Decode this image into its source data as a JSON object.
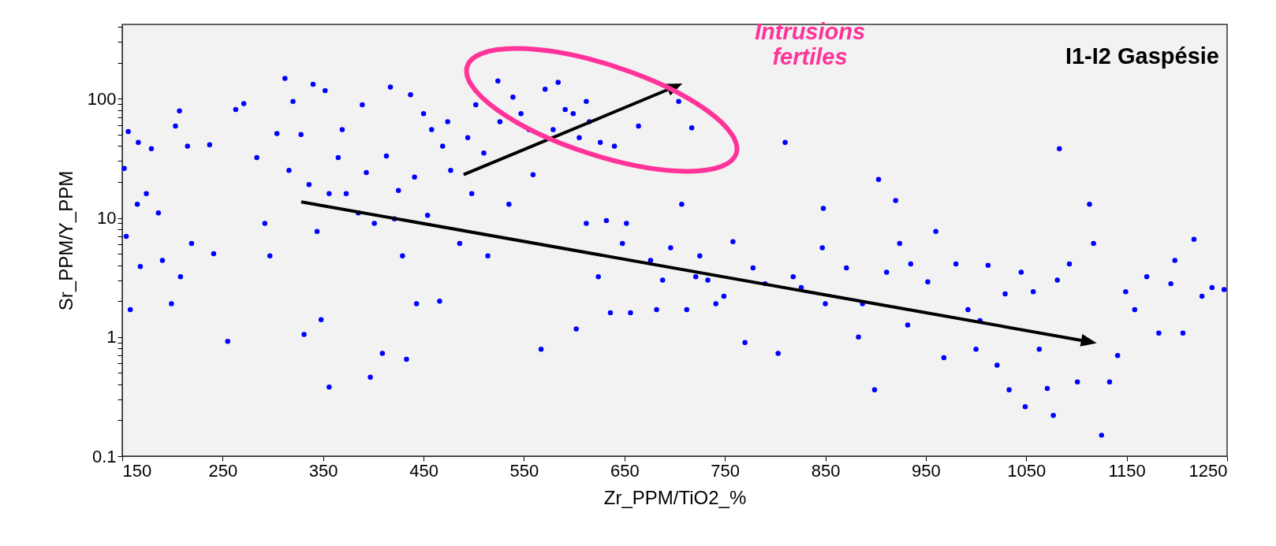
{
  "chart_data": {
    "type": "scatter",
    "title": "I1-I2 Gaspésie",
    "xlabel": "Zr_PPM/TiO2_%",
    "ylabel": "Sr_PPM/Y_PPM",
    "annotations": [
      "Intrusions fertiles"
    ],
    "log": "y",
    "grid": false,
    "legend": false,
    "marker": "circle",
    "xlim": [
      150,
      1250
    ],
    "xticks": [
      150,
      250,
      350,
      450,
      550,
      650,
      750,
      850,
      950,
      1050,
      1150,
      1250
    ],
    "ylim": [
      0.1,
      420
    ],
    "yticks": [
      0.1,
      {
        "value": 0.2,
        "label": null
      },
      {
        "value": 0.3,
        "label": null
      },
      {
        "value": 0.4,
        "label": null
      },
      {
        "value": 0.5,
        "label": null
      },
      {
        "value": 0.6,
        "label": null
      },
      {
        "value": 0.7,
        "label": null
      },
      {
        "value": 0.8,
        "label": null
      },
      {
        "value": 0.9,
        "label": null
      },
      1,
      {
        "value": 2,
        "label": null
      },
      {
        "value": 3,
        "label": null
      },
      {
        "value": 4,
        "label": null
      },
      {
        "value": 5,
        "label": null
      },
      {
        "value": 6,
        "label": null
      },
      {
        "value": 7,
        "label": null
      },
      {
        "value": 8,
        "label": null
      },
      {
        "value": 9,
        "label": null
      },
      10,
      {
        "value": 20,
        "label": null
      },
      {
        "value": 30,
        "label": null
      },
      {
        "value": 40,
        "label": null
      },
      {
        "value": 50,
        "label": null
      },
      {
        "value": 60,
        "label": null
      },
      {
        "value": 70,
        "label": null
      },
      {
        "value": 80,
        "label": null
      },
      {
        "value": 90,
        "label": null
      },
      100,
      {
        "value": 200,
        "label": null
      },
      {
        "value": 300,
        "label": null
      },
      {
        "value": 400,
        "label": null
      }
    ],
    "series": [
      {
        "color": "#0000ff",
        "x": [
          152,
          156,
          154,
          158,
          166,
          165,
          168,
          174,
          179,
          186,
          190,
          199,
          203,
          207,
          208,
          215,
          219,
          237,
          241,
          255,
          263,
          271,
          284,
          292,
          297,
          304,
          312,
          316,
          320,
          328,
          331,
          336,
          340,
          344,
          348,
          352,
          356,
          356,
          365,
          369,
          373,
          385,
          389,
          393,
          397,
          401,
          409,
          413,
          417,
          421,
          425,
          429,
          433,
          437,
          441,
          443,
          450,
          454,
          458,
          466,
          469,
          474,
          477,
          486,
          494,
          498,
          502,
          510,
          514,
          524,
          526,
          535,
          539,
          547,
          555,
          559,
          567,
          571,
          579,
          584,
          591,
          599,
          602,
          605,
          612,
          612,
          615,
          624,
          626,
          632,
          636,
          640,
          648,
          652,
          656,
          664,
          676,
          682,
          688,
          696,
          704,
          707,
          712,
          717,
          721,
          725,
          733,
          741,
          749,
          758,
          770,
          778,
          790,
          803,
          810,
          818,
          826,
          847,
          848,
          850,
          871,
          883,
          887,
          899,
          903,
          911,
          920,
          924,
          932,
          935,
          952,
          960,
          968,
          980,
          992,
          1000,
          1004,
          1012,
          1021,
          1029,
          1033,
          1045,
          1049,
          1057,
          1063,
          1071,
          1077,
          1081,
          1083,
          1093,
          1101,
          1113,
          1117,
          1125,
          1133,
          1141,
          1149,
          1158,
          1170,
          1182,
          1194,
          1198,
          1206,
          1217,
          1225,
          1235,
          1247
        ],
        "values": [
          26,
          53,
          7,
          1.7,
          43,
          13,
          3.9,
          16,
          38,
          11,
          4.4,
          1.9,
          59,
          79,
          3.2,
          40,
          6.1,
          41,
          5,
          0.92,
          81,
          91,
          32,
          9,
          4.8,
          51,
          148,
          25,
          95,
          50,
          1.05,
          19,
          132,
          7.7,
          1.4,
          117,
          16,
          0.38,
          32,
          55,
          16,
          11,
          89,
          24,
          0.46,
          9,
          0.73,
          33,
          125,
          9.8,
          17,
          4.8,
          0.65,
          108,
          22,
          1.9,
          75,
          10.5,
          55,
          2,
          40,
          64,
          25,
          6.1,
          47,
          16,
          89,
          35,
          4.8,
          141,
          64,
          13,
          103,
          75,
          55,
          23,
          0.79,
          120,
          55,
          137,
          81,
          75,
          1.17,
          47,
          95,
          9,
          64,
          3.2,
          43,
          9.5,
          1.6,
          40,
          6.1,
          9,
          1.6,
          59,
          4.4,
          1.7,
          3,
          5.6,
          95,
          13,
          1.7,
          57,
          3.2,
          4.8,
          3,
          1.9,
          2.2,
          6.3,
          0.9,
          3.8,
          2.8,
          0.73,
          43,
          3.2,
          2.6,
          5.6,
          12,
          1.9,
          3.8,
          1,
          1.9,
          0.36,
          21,
          3.5,
          14,
          6.1,
          1.26,
          4.1,
          2.9,
          7.7,
          0.67,
          4.1,
          1.7,
          0.79,
          1.37,
          4,
          0.58,
          2.3,
          0.36,
          3.5,
          0.26,
          2.4,
          0.79,
          0.37,
          0.22,
          3,
          38,
          4.1,
          0.42,
          13,
          6.1,
          0.15,
          0.42,
          0.7,
          2.4,
          1.7,
          3.2,
          1.08,
          2.8,
          4.4,
          1.08,
          6.6,
          2.2,
          2.6,
          2.5
        ]
      }
    ]
  }
}
